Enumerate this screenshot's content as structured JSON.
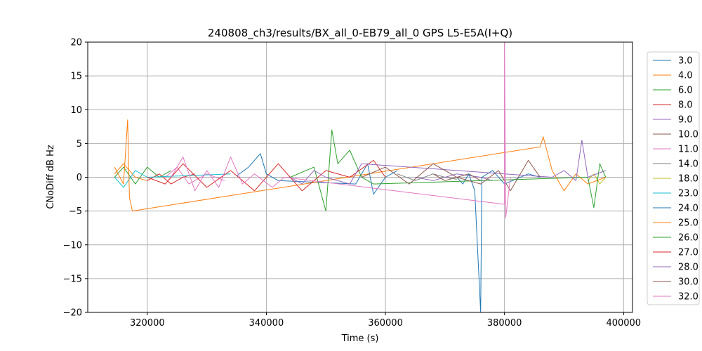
{
  "chart_data": {
    "type": "line",
    "title": "240808_ch3/results/BX_all_0-EB79_all_0 GPS L5-E5A(I+Q)",
    "xlabel": "Time (s)",
    "ylabel": "CNoDiff dB Hz",
    "xlim": [
      310000,
      401500
    ],
    "ylim": [
      -20,
      20
    ],
    "grid": true,
    "legend_position": "right-outside",
    "x_ticks": [
      320000,
      340000,
      360000,
      380000,
      400000
    ],
    "x_tick_labels": [
      "320000",
      "340000",
      "360000",
      "380000",
      "400000"
    ],
    "y_ticks": [
      -20,
      -15,
      -10,
      -5,
      0,
      5,
      10,
      15,
      20
    ],
    "y_tick_labels": [
      "−20",
      "−15",
      "−10",
      "−5",
      "0",
      "5",
      "10",
      "15",
      "20"
    ],
    "series": [
      {
        "name": "3.0",
        "color": "#1f77b4",
        "points": [
          [
            335000,
            0.2
          ],
          [
            337000,
            1.5
          ],
          [
            339000,
            3.5
          ],
          [
            340000,
            0.5
          ],
          [
            342000,
            -0.5
          ],
          [
            355000,
            -1
          ],
          [
            357000,
            2
          ],
          [
            358000,
            -2.5
          ],
          [
            360000,
            0
          ],
          [
            362000,
            1
          ]
        ]
      },
      {
        "name": "4.0",
        "color": "#ff7f0e",
        "points": [
          [
            314500,
            0.5
          ],
          [
            316000,
            2
          ],
          [
            317000,
            1
          ],
          [
            318000,
            0
          ],
          [
            320000,
            -0.5
          ]
        ]
      },
      {
        "name": "6.0",
        "color": "#2ca02c",
        "points": [
          [
            314500,
            0
          ],
          [
            316000,
            1.5
          ],
          [
            318000,
            -1
          ],
          [
            320000,
            1.5
          ],
          [
            322000,
            0
          ],
          [
            324000,
            1
          ]
        ]
      },
      {
        "name": "8.0",
        "color": "#d62728",
        "points": [
          [
            320000,
            -0.5
          ],
          [
            322000,
            0.5
          ],
          [
            324000,
            -1
          ],
          [
            326000,
            0
          ],
          [
            328000,
            0.5
          ]
        ]
      },
      {
        "name": "9.0",
        "color": "#9467bd",
        "points": [
          [
            365000,
            0
          ],
          [
            368000,
            -0.5
          ],
          [
            372000,
            0.5
          ],
          [
            376000,
            0
          ],
          [
            378000,
            -0.5
          ]
        ]
      },
      {
        "name": "10.0",
        "color": "#8c564b",
        "points": [
          [
            368000,
            0.5
          ],
          [
            370000,
            -0.5
          ],
          [
            372000,
            0
          ],
          [
            374000,
            0.5
          ],
          [
            376000,
            -0.5
          ]
        ]
      },
      {
        "name": "11.0",
        "color": "#e377c2",
        "points": [
          [
            323000,
            0
          ],
          [
            325000,
            1.5
          ],
          [
            327000,
            -1
          ],
          [
            330000,
            0.5
          ],
          [
            333000,
            -0.5
          ]
        ]
      },
      {
        "name": "14.0",
        "color": "#7f7f7f",
        "points": [
          [
            362000,
            0.5
          ],
          [
            365000,
            -0.5
          ],
          [
            368000,
            0.5
          ],
          [
            370000,
            0
          ],
          [
            372000,
            -0.3
          ]
        ]
      },
      {
        "name": "18.0",
        "color": "#bcbd22",
        "points": [
          [
            394000,
            -0.5
          ],
          [
            395000,
            0.5
          ],
          [
            396000,
            -1
          ],
          [
            397000,
            0
          ]
        ]
      },
      {
        "name": "23.0",
        "color": "#17becf",
        "points": [
          [
            314500,
            0
          ],
          [
            316000,
            -1.5
          ],
          [
            318000,
            1
          ],
          [
            320000,
            0
          ],
          [
            334000,
            0.5
          ]
        ]
      },
      {
        "name": "24.0",
        "color": "#1f77b4",
        "points": [
          [
            372000,
            0
          ],
          [
            373000,
            -1
          ],
          [
            374000,
            0.5
          ],
          [
            375000,
            -2
          ],
          [
            376000,
            -20
          ],
          [
            376200,
            0
          ],
          [
            378000,
            1
          ],
          [
            380000,
            -1
          ],
          [
            384000,
            0.5
          ],
          [
            386000,
            0
          ]
        ]
      },
      {
        "name": "25.0",
        "color": "#ff7f0e",
        "points": [
          [
            314500,
            1.5
          ],
          [
            316000,
            -1
          ],
          [
            316700,
            8.5
          ],
          [
            317000,
            -3
          ],
          [
            317500,
            -5
          ],
          [
            386000,
            4.5
          ],
          [
            386500,
            6
          ],
          [
            388000,
            1
          ],
          [
            390000,
            -2
          ],
          [
            392000,
            0.5
          ],
          [
            394000,
            -1
          ],
          [
            397000,
            0
          ]
        ]
      },
      {
        "name": "26.0",
        "color": "#2ca02c",
        "points": [
          [
            344000,
            0
          ],
          [
            348000,
            1.5
          ],
          [
            350000,
            -5
          ],
          [
            351000,
            7
          ],
          [
            352000,
            2
          ],
          [
            354000,
            4
          ],
          [
            356000,
            0
          ],
          [
            358000,
            -1
          ],
          [
            394000,
            0
          ],
          [
            395000,
            -4.5
          ],
          [
            396000,
            2
          ],
          [
            397000,
            0
          ]
        ]
      },
      {
        "name": "27.0",
        "color": "#d62728",
        "points": [
          [
            320000,
            0
          ],
          [
            323000,
            -1
          ],
          [
            326000,
            2
          ],
          [
            330000,
            -1.5
          ],
          [
            334000,
            1
          ],
          [
            338000,
            -2
          ],
          [
            342000,
            2
          ],
          [
            346000,
            -2
          ],
          [
            350000,
            1
          ],
          [
            354000,
            0
          ],
          [
            358000,
            2.5
          ],
          [
            360000,
            0
          ]
        ]
      },
      {
        "name": "28.0",
        "color": "#9467bd",
        "points": [
          [
            344000,
            0
          ],
          [
            346000,
            -1
          ],
          [
            348000,
            1
          ],
          [
            350000,
            0
          ],
          [
            354000,
            -1
          ],
          [
            356000,
            2
          ],
          [
            388000,
            0
          ],
          [
            390000,
            1
          ],
          [
            392000,
            -0.5
          ],
          [
            393000,
            5.5
          ],
          [
            394000,
            0
          ],
          [
            397000,
            1
          ]
        ]
      },
      {
        "name": "30.0",
        "color": "#8c564b",
        "points": [
          [
            356000,
            0
          ],
          [
            360000,
            1.5
          ],
          [
            364000,
            -1
          ],
          [
            368000,
            2
          ],
          [
            372000,
            0
          ],
          [
            376000,
            -1
          ],
          [
            379000,
            1
          ],
          [
            381000,
            -2
          ],
          [
            384000,
            2.5
          ],
          [
            386000,
            0
          ]
        ]
      },
      {
        "name": "32.0",
        "color": "#e377c2",
        "points": [
          [
            324000,
            0
          ],
          [
            326000,
            3
          ],
          [
            328000,
            -2
          ],
          [
            330000,
            1
          ],
          [
            332000,
            -1.5
          ],
          [
            334000,
            3
          ],
          [
            336000,
            -1
          ],
          [
            338000,
            0.5
          ],
          [
            341000,
            -1.5
          ],
          [
            343000,
            0
          ],
          [
            380000,
            -4
          ],
          [
            380000,
            20
          ],
          [
            380200,
            -6
          ],
          [
            381000,
            0
          ]
        ]
      }
    ]
  }
}
